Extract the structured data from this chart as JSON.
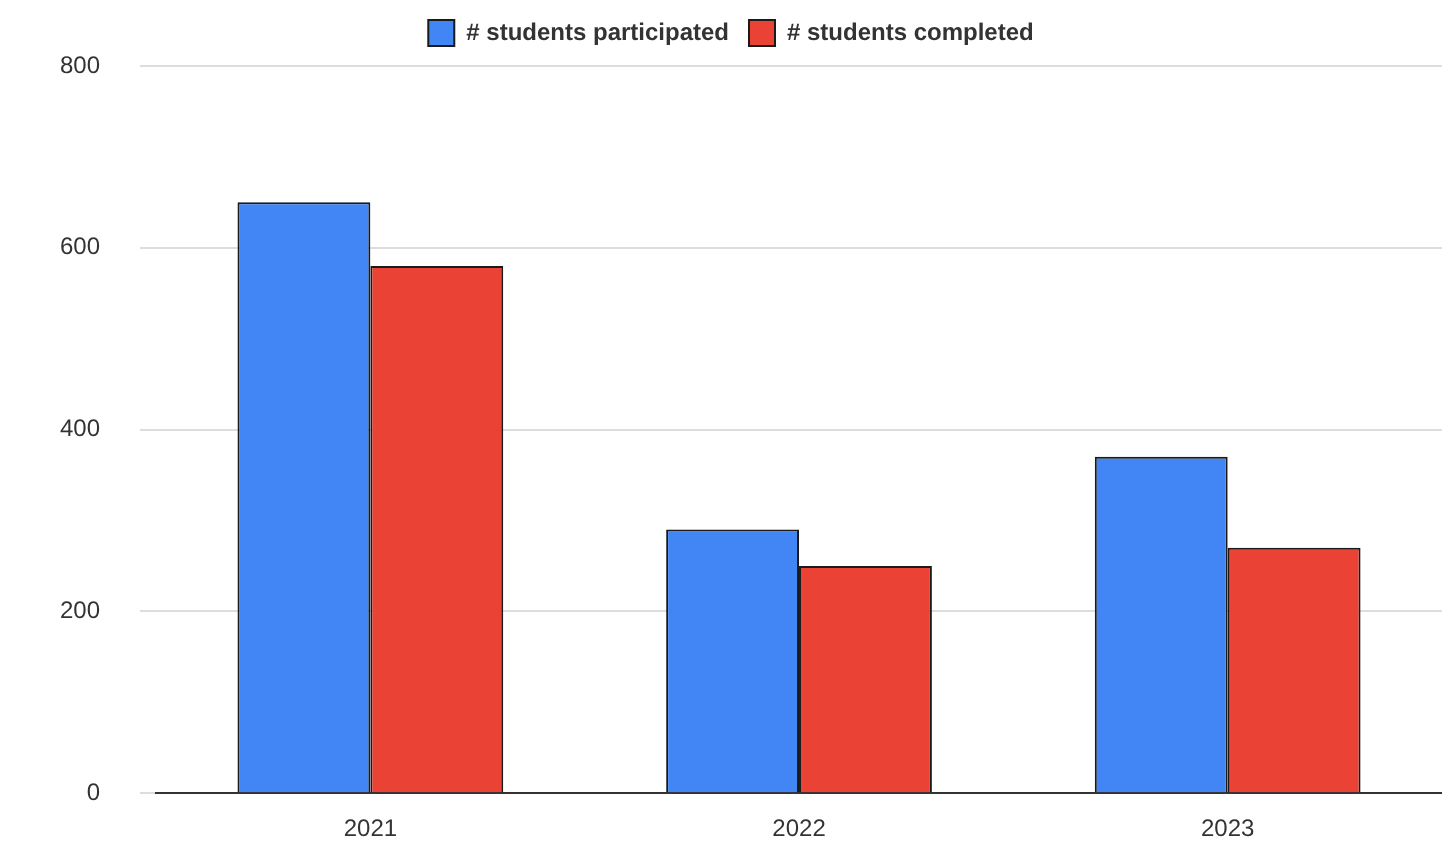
{
  "chart_data": {
    "type": "bar",
    "categories": [
      "2021",
      "2022",
      "2023"
    ],
    "series": [
      {
        "name": "# students participated",
        "color": "#4285f4",
        "values": [
          650,
          290,
          370
        ]
      },
      {
        "name": "# students completed",
        "color": "#ea4335",
        "values": [
          580,
          250,
          270
        ]
      }
    ],
    "ylim": [
      0,
      800
    ],
    "yticks": [
      0,
      200,
      400,
      600,
      800
    ],
    "grid": "y",
    "legend": "top"
  }
}
